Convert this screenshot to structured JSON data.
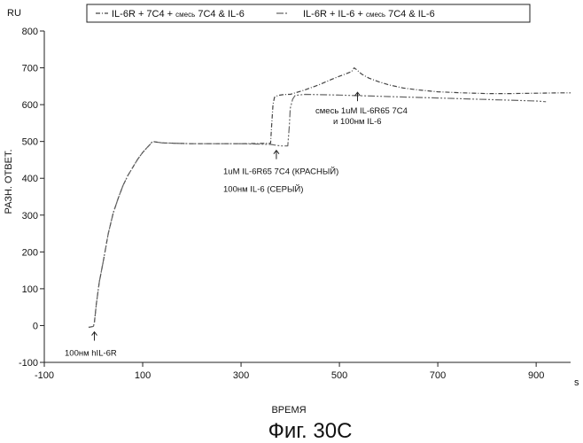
{
  "chart_data": {
    "type": "line",
    "title": "",
    "units_label": "RU",
    "ylabel": "РАЗН. ОТВЕТ.",
    "xlabel": "ВРЕМЯ",
    "x_unit": "s",
    "caption": "Фиг. 30С",
    "xlim": [
      -100,
      970
    ],
    "ylim": [
      -100,
      800
    ],
    "x_ticks": [
      -100,
      100,
      300,
      500,
      700,
      900
    ],
    "y_ticks": [
      -100,
      0,
      100,
      200,
      300,
      400,
      500,
      600,
      700,
      800
    ],
    "legend": {
      "position": "top",
      "entries": [
        {
          "prefix": "IL-6R + 7C4 +",
          "small": "смесь",
          "suffix": "7C4 & IL-6"
        },
        {
          "prefix": "IL-6R + IL-6 +",
          "small": "смесь",
          "suffix": "7C4 & IL-6"
        }
      ]
    },
    "series": [
      {
        "name": "IL-6R + 7C4 + смесь 7C4 & IL-6",
        "color": "#444444",
        "dash": "5 2 1 2",
        "x": [
          -10,
          -3,
          0,
          2,
          6,
          12,
          20,
          30,
          40,
          50,
          60,
          70,
          80,
          90,
          100,
          110,
          115,
          120,
          140,
          200,
          300,
          360,
          362,
          365,
          368,
          375,
          385,
          395,
          400,
          430,
          460,
          490,
          510,
          525,
          530,
          535,
          545,
          560,
          580,
          600,
          630,
          660,
          700,
          750,
          800,
          850,
          900,
          950,
          970
        ],
        "y": [
          -5,
          -3,
          -2,
          10,
          60,
          120,
          175,
          250,
          305,
          345,
          380,
          408,
          430,
          452,
          470,
          485,
          492,
          500,
          496,
          494,
          494,
          495,
          540,
          600,
          620,
          625,
          627,
          628,
          628,
          640,
          655,
          672,
          682,
          690,
          700,
          695,
          683,
          672,
          662,
          654,
          645,
          640,
          635,
          632,
          630,
          630,
          631,
          632,
          632
        ]
      },
      {
        "name": "IL-6R + IL-6 + смесь 7C4 & IL-6",
        "color": "#666666",
        "dash": "8 2 2 2 2 2",
        "x": [
          -10,
          -3,
          0,
          2,
          6,
          12,
          20,
          30,
          40,
          50,
          60,
          70,
          80,
          90,
          100,
          110,
          115,
          120,
          140,
          200,
          300,
          360,
          370,
          380,
          395,
          398,
          400,
          405,
          410,
          430,
          500,
          600,
          700,
          800,
          900,
          920
        ],
        "y": [
          -5,
          -3,
          -2,
          10,
          60,
          120,
          175,
          250,
          305,
          345,
          380,
          408,
          430,
          452,
          470,
          485,
          492,
          500,
          496,
          494,
          494,
          492,
          490,
          488,
          488,
          540,
          590,
          615,
          625,
          628,
          626,
          622,
          618,
          614,
          610,
          608
        ]
      }
    ],
    "annotations": [
      {
        "x": 0,
        "y": -5,
        "lines": [
          "100нм hIL-6R"
        ]
      },
      {
        "x": 370,
        "y": 488,
        "lines": [
          "1uM IL-6R65 7C4 (КРАСНЫЙ)",
          "100нм IL-6 (СЕРЫЙ)"
        ]
      },
      {
        "x": 535,
        "y": 660,
        "lines": [
          "смесь 1uM IL-6R65 7C4",
          "и 100нм IL-6"
        ]
      }
    ],
    "grid": false
  }
}
